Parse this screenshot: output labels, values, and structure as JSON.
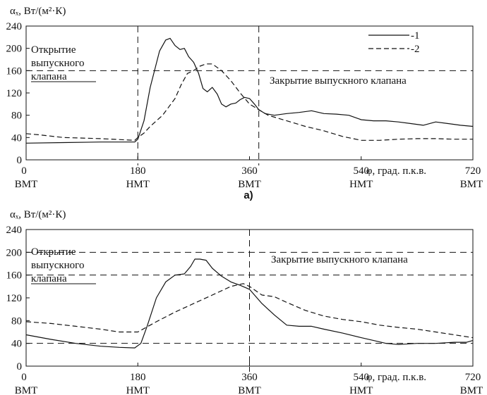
{
  "chart_data": [
    {
      "type": "line",
      "sublabel": "а)",
      "ylabel": "αₓ, Вт/(м²·К)",
      "xlabel": "φ, град. п.к.в.",
      "xlim": [
        0,
        720
      ],
      "ylim": [
        0,
        240
      ],
      "yticks": [
        "0",
        "40",
        "80",
        "120",
        "160",
        "200",
        "240"
      ],
      "xticks": [
        {
          "value": 0,
          "label": "0",
          "sublabel": "ВМТ"
        },
        {
          "value": 180,
          "label": "180",
          "sublabel": "НМТ"
        },
        {
          "value": 360,
          "label": "360",
          "sublabel": "ВМТ"
        },
        {
          "value": 540,
          "label": "540",
          "sublabel": "НМТ"
        },
        {
          "value": 720,
          "label": "720",
          "sublabel": "ВМТ"
        }
      ],
      "grid": false,
      "ref_hlines": [
        160
      ],
      "ref_vlines": [
        180,
        375
      ],
      "legend_position": "top-right",
      "legend": [
        {
          "label": "-1",
          "style": "solid"
        },
        {
          "label": "-2",
          "style": "dashed"
        }
      ],
      "annotations": [
        {
          "lines": [
            "Открытие",
            "выпускного",
            "клапана"
          ]
        },
        {
          "lines": [
            "Закрытие выпускного клапана"
          ]
        }
      ],
      "series": [
        {
          "name": "1",
          "style": "solid",
          "x": [
            0,
            60,
            120,
            175,
            180,
            190,
            200,
            215,
            225,
            232,
            240,
            248,
            255,
            262,
            270,
            278,
            285,
            292,
            300,
            308,
            315,
            322,
            330,
            338,
            345,
            352,
            360,
            368,
            375,
            385,
            400,
            420,
            440,
            460,
            480,
            500,
            520,
            540,
            560,
            580,
            600,
            620,
            640,
            660,
            680,
            700,
            720
          ],
          "y": [
            30,
            31,
            32,
            32,
            37,
            70,
            130,
            195,
            215,
            218,
            205,
            198,
            200,
            185,
            175,
            155,
            128,
            122,
            130,
            118,
            100,
            95,
            100,
            102,
            108,
            112,
            110,
            100,
            90,
            83,
            80,
            83,
            85,
            88,
            83,
            82,
            80,
            72,
            70,
            70,
            68,
            65,
            62,
            68,
            65,
            62,
            60
          ]
        },
        {
          "name": "2",
          "style": "dashed",
          "x": [
            0,
            20,
            60,
            120,
            175,
            180,
            190,
            200,
            220,
            240,
            250,
            260,
            270,
            280,
            290,
            300,
            315,
            330,
            345,
            360,
            375,
            390,
            420,
            450,
            480,
            510,
            540,
            570,
            600,
            630,
            660,
            690,
            720
          ],
          "y": [
            47,
            45,
            40,
            38,
            35,
            40,
            48,
            60,
            80,
            110,
            135,
            155,
            160,
            168,
            172,
            172,
            160,
            142,
            120,
            100,
            90,
            80,
            70,
            60,
            52,
            42,
            35,
            35,
            37,
            38,
            38,
            37,
            37
          ]
        }
      ]
    },
    {
      "type": "line",
      "sublabel": "",
      "ylabel": "αₓ, Вт/(м²·К)",
      "xlabel": "φ, град. п.к.в.",
      "xlim": [
        0,
        720
      ],
      "ylim": [
        0,
        240
      ],
      "yticks": [
        "0",
        "40",
        "80",
        "120",
        "160",
        "200",
        "240"
      ],
      "xticks": [
        {
          "value": 0,
          "label": "0",
          "sublabel": "ВМТ"
        },
        {
          "value": 180,
          "label": "180",
          "sublabel": "НМТ"
        },
        {
          "value": 360,
          "label": "360",
          "sublabel": "ВМТ"
        },
        {
          "value": 540,
          "label": "540",
          "sublabel": "НМТ"
        },
        {
          "value": 720,
          "label": "720",
          "sublabel": "ВМТ"
        }
      ],
      "grid": false,
      "ref_hlines": [
        40,
        160,
        200
      ],
      "ref_vlines": [
        360
      ],
      "legend_position": "none",
      "legend": [],
      "annotations": [
        {
          "lines": [
            "Открытие",
            "выпускного",
            "клапана"
          ]
        },
        {
          "lines": [
            "Закрытие выпускного клапана"
          ]
        }
      ],
      "series": [
        {
          "name": "1",
          "style": "solid",
          "x": [
            0,
            40,
            80,
            120,
            150,
            175,
            185,
            195,
            210,
            225,
            240,
            255,
            265,
            272,
            280,
            290,
            300,
            315,
            330,
            345,
            360,
            380,
            400,
            420,
            440,
            460,
            480,
            510,
            540,
            560,
            580,
            600,
            630,
            660,
            690,
            710,
            720
          ],
          "y": [
            55,
            47,
            40,
            35,
            33,
            32,
            40,
            70,
            120,
            148,
            160,
            162,
            175,
            188,
            188,
            186,
            172,
            158,
            148,
            142,
            135,
            110,
            90,
            72,
            70,
            70,
            65,
            58,
            50,
            45,
            40,
            38,
            40,
            40,
            42,
            42,
            45
          ]
        },
        {
          "name": "2",
          "style": "dashed",
          "x": [
            0,
            40,
            80,
            120,
            150,
            180,
            210,
            240,
            270,
            300,
            330,
            350,
            360,
            380,
            400,
            420,
            450,
            480,
            510,
            540,
            570,
            600,
            630,
            660,
            690,
            720
          ],
          "y": [
            78,
            75,
            70,
            65,
            60,
            60,
            78,
            95,
            110,
            125,
            140,
            145,
            140,
            125,
            122,
            112,
            98,
            88,
            82,
            78,
            72,
            68,
            65,
            60,
            55,
            50
          ]
        }
      ]
    }
  ]
}
